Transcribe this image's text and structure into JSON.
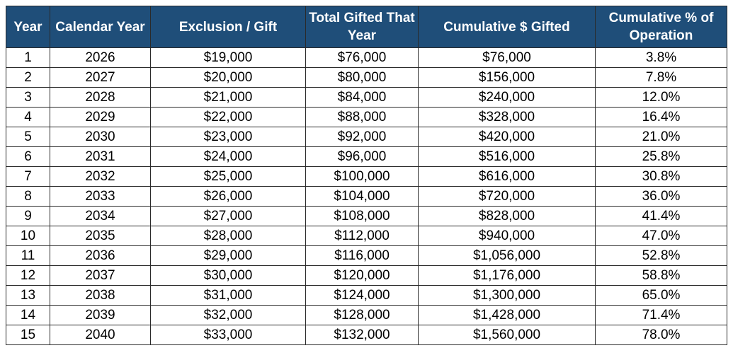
{
  "table": {
    "headers": [
      "Year",
      "Calendar Year",
      "Exclusion / Gift",
      "Total Gifted That Year",
      "Cumulative $ Gifted",
      "Cumulative % of Operation"
    ],
    "rows": [
      [
        "1",
        "2026",
        "$19,000",
        "$76,000",
        "$76,000",
        "3.8%"
      ],
      [
        "2",
        "2027",
        "$20,000",
        "$80,000",
        "$156,000",
        "7.8%"
      ],
      [
        "3",
        "2028",
        "$21,000",
        "$84,000",
        "$240,000",
        "12.0%"
      ],
      [
        "4",
        "2029",
        "$22,000",
        "$88,000",
        "$328,000",
        "16.4%"
      ],
      [
        "5",
        "2030",
        "$23,000",
        "$92,000",
        "$420,000",
        "21.0%"
      ],
      [
        "6",
        "2031",
        "$24,000",
        "$96,000",
        "$516,000",
        "25.8%"
      ],
      [
        "7",
        "2032",
        "$25,000",
        "$100,000",
        "$616,000",
        "30.8%"
      ],
      [
        "8",
        "2033",
        "$26,000",
        "$104,000",
        "$720,000",
        "36.0%"
      ],
      [
        "9",
        "2034",
        "$27,000",
        "$108,000",
        "$828,000",
        "41.4%"
      ],
      [
        "10",
        "2035",
        "$28,000",
        "$112,000",
        "$940,000",
        "47.0%"
      ],
      [
        "11",
        "2036",
        "$29,000",
        "$116,000",
        "$1,056,000",
        "52.8%"
      ],
      [
        "12",
        "2037",
        "$30,000",
        "$120,000",
        "$1,176,000",
        "58.8%"
      ],
      [
        "13",
        "2038",
        "$31,000",
        "$124,000",
        "$1,300,000",
        "65.0%"
      ],
      [
        "14",
        "2039",
        "$32,000",
        "$128,000",
        "$1,428,000",
        "71.4%"
      ],
      [
        "15",
        "2040",
        "$33,000",
        "$132,000",
        "$1,560,000",
        "78.0%"
      ]
    ]
  },
  "colors": {
    "header_bg": "#1f4e79",
    "header_text": "#ffffff",
    "border": "#2a2a2a"
  }
}
